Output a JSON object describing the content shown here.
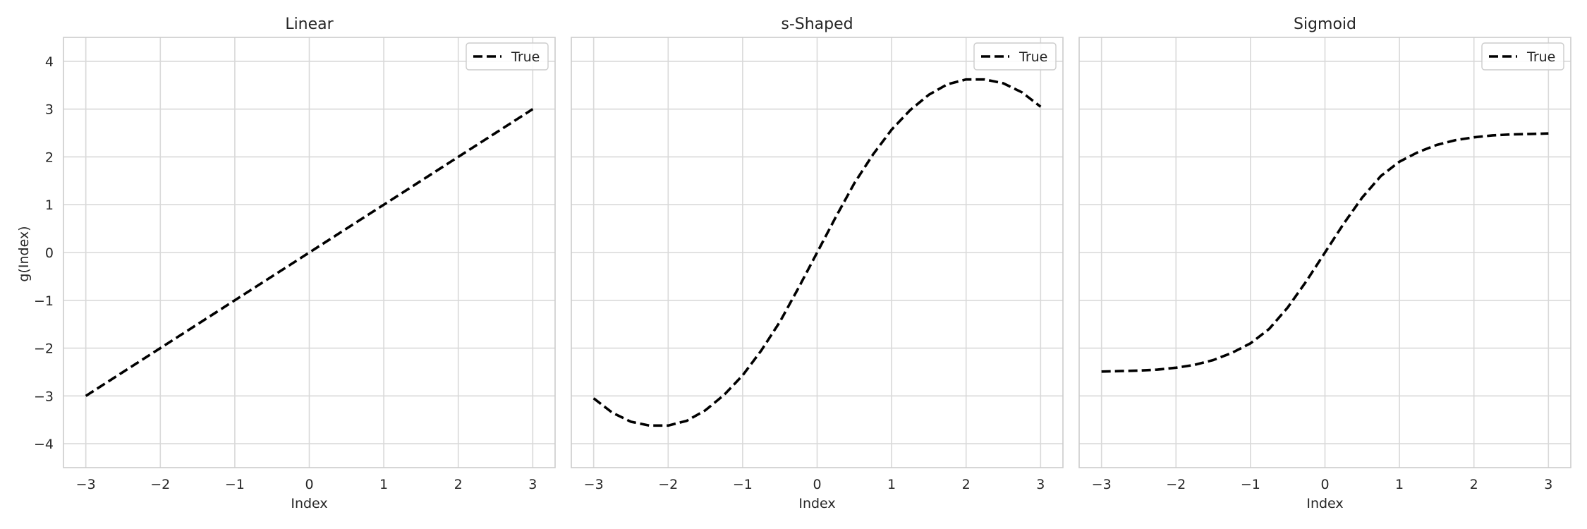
{
  "figure": {
    "ylabel": "g(Index)",
    "colors": {
      "grid": "#d9d9d9",
      "frame": "#cccccc",
      "line": "#000000",
      "text": "#262626",
      "background": "#ffffff"
    }
  },
  "chart_data": [
    {
      "type": "line",
      "title": "Linear",
      "xlabel": "Index",
      "ylabel": "g(Index)",
      "xlim": [
        -3.3,
        3.3
      ],
      "ylim": [
        -4.5,
        4.5
      ],
      "xticks": [
        -3,
        -2,
        -1,
        0,
        1,
        2,
        3
      ],
      "yticks": [
        -4,
        -3,
        -2,
        -1,
        0,
        1,
        2,
        3,
        4
      ],
      "show_yticklabels": true,
      "grid": true,
      "legend": "upper right",
      "series": [
        {
          "name": "True",
          "style": "dashed",
          "color": "#000000",
          "x": [
            -3,
            -2.5,
            -2,
            -1.5,
            -1,
            -0.5,
            0,
            0.5,
            1,
            1.5,
            2,
            2.5,
            3
          ],
          "y": [
            -3,
            -2.5,
            -2,
            -1.5,
            -1,
            -0.5,
            0,
            0.5,
            1,
            1.5,
            2,
            2.5,
            3
          ]
        }
      ]
    },
    {
      "type": "line",
      "title": "s-Shaped",
      "xlabel": "Index",
      "ylabel": "",
      "xlim": [
        -3.3,
        3.3
      ],
      "ylim": [
        -4.5,
        4.5
      ],
      "xticks": [
        -3,
        -2,
        -1,
        0,
        1,
        2,
        3
      ],
      "yticks": [
        -4,
        -3,
        -2,
        -1,
        0,
        1,
        2,
        3,
        4
      ],
      "show_yticklabels": false,
      "grid": true,
      "legend": "upper right",
      "series": [
        {
          "name": "True",
          "style": "dashed",
          "color": "#000000",
          "x": [
            -3,
            -2.75,
            -2.5,
            -2.25,
            -2,
            -1.75,
            -1.5,
            -1.25,
            -1,
            -0.75,
            -0.5,
            -0.25,
            0,
            0.25,
            0.5,
            0.75,
            1,
            1.25,
            1.5,
            1.75,
            2,
            2.25,
            2.5,
            2.75,
            3
          ],
          "y": [
            -3.05,
            -3.35,
            -3.54,
            -3.62,
            -3.62,
            -3.52,
            -3.3,
            -2.98,
            -2.57,
            -2.05,
            -1.45,
            -0.74,
            0,
            0.74,
            1.45,
            2.05,
            2.57,
            2.98,
            3.3,
            3.52,
            3.62,
            3.62,
            3.54,
            3.35,
            3.05
          ]
        }
      ]
    },
    {
      "type": "line",
      "title": "Sigmoid",
      "xlabel": "Index",
      "ylabel": "",
      "xlim": [
        -3.3,
        3.3
      ],
      "ylim": [
        -4.5,
        4.5
      ],
      "xticks": [
        -3,
        -2,
        -1,
        0,
        1,
        2,
        3
      ],
      "yticks": [
        -4,
        -3,
        -2,
        -1,
        0,
        1,
        2,
        3,
        4
      ],
      "show_yticklabels": false,
      "grid": true,
      "legend": "upper right",
      "series": [
        {
          "name": "True",
          "style": "dashed",
          "color": "#000000",
          "x": [
            -3,
            -2.75,
            -2.5,
            -2.25,
            -2,
            -1.75,
            -1.5,
            -1.25,
            -1,
            -0.75,
            -0.5,
            -0.25,
            0,
            0.25,
            0.5,
            0.75,
            1,
            1.25,
            1.5,
            1.75,
            2,
            2.25,
            2.5,
            2.75,
            3
          ],
          "y": [
            -2.49,
            -2.48,
            -2.47,
            -2.45,
            -2.41,
            -2.35,
            -2.25,
            -2.1,
            -1.9,
            -1.6,
            -1.15,
            -0.6,
            0,
            0.6,
            1.15,
            1.6,
            1.9,
            2.1,
            2.25,
            2.35,
            2.41,
            2.45,
            2.47,
            2.48,
            2.49
          ]
        }
      ]
    }
  ]
}
